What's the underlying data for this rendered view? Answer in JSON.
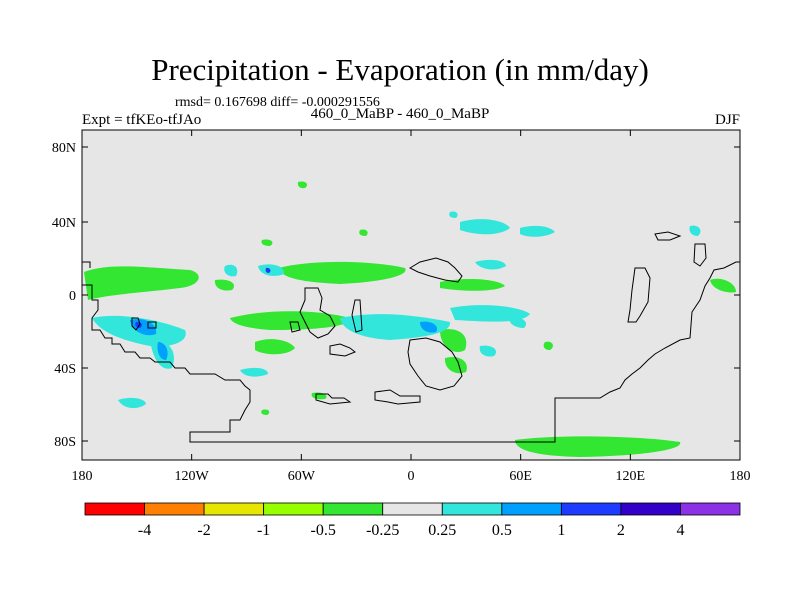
{
  "header": {
    "title": "Precipitation - Evaporation (in mm/day)",
    "stats": "rmsd= 0.167698  diff= -0.000291556",
    "expt": "Expt = tfKEo-tfJAo",
    "period": "460_0_MaBP - 460_0_MaBP",
    "season": "DJF"
  },
  "map": {
    "background_color": "#e6e6e6",
    "lat_ticks": [
      "80N",
      "40N",
      "0",
      "40S",
      "80S"
    ],
    "lon_ticks": [
      "180",
      "120W",
      "60W",
      "0",
      "60E",
      "120E",
      "180"
    ]
  },
  "colorbar": {
    "colors": [
      "#ff0000",
      "#ff8000",
      "#e6e600",
      "#96ff00",
      "#32e632",
      "#e6e6e6",
      "#32e6dc",
      "#00a0ff",
      "#1e3cff",
      "#3200c8",
      "#8c32e6"
    ],
    "labels": [
      "-4",
      "-2",
      "-1",
      "-0.5",
      "-0.25",
      "0.25",
      "0.5",
      "1",
      "2",
      "4"
    ]
  }
}
